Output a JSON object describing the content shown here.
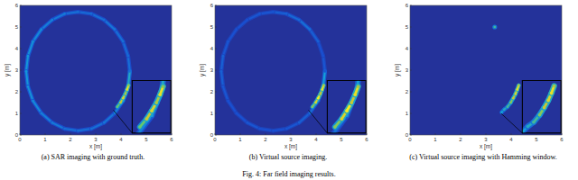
{
  "caption": "Fig. 4: Far field imaging results.",
  "chart_data": [
    {
      "type": "heatmap",
      "title": "(a)  SAR imaging with ground truth.",
      "xlabel": "x [m]",
      "ylabel": "y [m]",
      "xlim": [
        0,
        6
      ],
      "ylim": [
        0,
        6
      ],
      "xticks": [
        0,
        1,
        2,
        3,
        4,
        5,
        6
      ],
      "yticks": [
        0,
        1,
        2,
        3,
        4,
        5,
        6
      ],
      "zoom": {
        "xlim": [
          3.7,
          4.45
        ],
        "ylim": [
          1.15,
          2.45
        ]
      },
      "series": [
        {
          "x": [
            4.35,
            4.28,
            4.08,
            3.75,
            3.33,
            2.83,
            2.3,
            1.77,
            1.28,
            0.85,
            0.52,
            0.32,
            0.25,
            0.32,
            0.52,
            0.85,
            1.28,
            1.77,
            2.3,
            2.83,
            3.33,
            3.75,
            4.08,
            4.28,
            4.35
          ],
          "y": [
            2.95,
            3.66,
            4.33,
            4.89,
            5.33,
            5.61,
            5.7,
            5.61,
            5.33,
            4.89,
            4.33,
            3.66,
            2.95,
            2.24,
            1.58,
            1.01,
            0.57,
            0.29,
            0.2,
            0.29,
            0.57,
            1.01,
            1.58,
            2.24,
            2.95
          ],
          "values": [
            0.3,
            0.28,
            0.3,
            0.32,
            0.3,
            0.28,
            0.3,
            0.33,
            0.35,
            0.38,
            0.4,
            0.42,
            0.42,
            0.4,
            0.38,
            0.35,
            0.33,
            0.3,
            0.3,
            0.3,
            0.32,
            0.35,
            0.45,
            0.5,
            0.3
          ],
          "line_style": "solid"
        },
        {
          "x": [
            3.85,
            3.98,
            4.08,
            4.17,
            4.24,
            4.3
          ],
          "y": [
            1.3,
            1.5,
            1.7,
            1.9,
            2.1,
            2.3
          ],
          "values": [
            0.7,
            0.85,
            0.9,
            0.8,
            0.95,
            0.75
          ],
          "line_style": "solid"
        }
      ]
    },
    {
      "type": "heatmap",
      "title": "(b)  Virtual source imaging.",
      "xlabel": "x [m]",
      "ylabel": "y [m]",
      "xlim": [
        0,
        6
      ],
      "ylim": [
        0,
        6
      ],
      "xticks": [
        0,
        1,
        2,
        3,
        4,
        5,
        6
      ],
      "yticks": [
        0,
        1,
        2,
        3,
        4,
        5,
        6
      ],
      "zoom": {
        "xlim": [
          3.7,
          4.45
        ],
        "ylim": [
          1.15,
          2.45
        ]
      },
      "series": [
        {
          "x": [
            4.35,
            4.28,
            4.08,
            3.75,
            3.33,
            2.83,
            2.3,
            1.77,
            1.28,
            0.85,
            0.52,
            0.32,
            0.25,
            0.32,
            0.52,
            0.85,
            1.28,
            1.77,
            2.3,
            2.83,
            3.33,
            3.75,
            4.08,
            4.28,
            4.35
          ],
          "y": [
            2.95,
            3.66,
            4.33,
            4.89,
            5.33,
            5.61,
            5.7,
            5.61,
            5.33,
            4.89,
            4.33,
            3.66,
            2.95,
            2.24,
            1.58,
            1.01,
            0.57,
            0.29,
            0.2,
            0.29,
            0.57,
            1.01,
            1.58,
            2.24,
            2.95
          ],
          "values": [
            0.22,
            0.2,
            0.25,
            0.3,
            0.28,
            0.25,
            0.22,
            0.22,
            0.2,
            0.2,
            0.22,
            0.25,
            0.25,
            0.22,
            0.2,
            0.2,
            0.22,
            0.2,
            0.2,
            0.22,
            0.25,
            0.3,
            0.4,
            0.45,
            0.22
          ],
          "line_style": "solid"
        },
        {
          "x": [
            3.85,
            3.98,
            4.08,
            4.17,
            4.24,
            4.3
          ],
          "y": [
            1.3,
            1.5,
            1.7,
            1.9,
            2.1,
            2.3
          ],
          "values": [
            0.75,
            0.9,
            1.0,
            0.85,
            0.95,
            0.8
          ],
          "line_style": "solid"
        }
      ]
    },
    {
      "type": "heatmap",
      "title": "(c)  Virtual source imaging with Hamming window.",
      "xlabel": "x [m]",
      "ylabel": "y [m]",
      "xlim": [
        0,
        6
      ],
      "ylim": [
        0,
        6
      ],
      "xticks": [
        0,
        1,
        2,
        3,
        4,
        5,
        6
      ],
      "yticks": [
        0,
        1,
        2,
        3,
        4,
        5,
        6
      ],
      "zoom": {
        "xlim": [
          3.6,
          4.45
        ],
        "ylim": [
          1.0,
          2.45
        ]
      },
      "series": [
        {
          "x": [
            3.62,
            3.72,
            3.85,
            3.98,
            4.08,
            4.17,
            4.24,
            4.3
          ],
          "y": [
            1.05,
            1.18,
            1.3,
            1.5,
            1.7,
            1.9,
            2.1,
            2.3
          ],
          "values": [
            0.45,
            0.5,
            0.6,
            0.75,
            0.85,
            0.9,
            0.95,
            0.8
          ],
          "line_style": "solid"
        },
        {
          "x": [
            3.35
          ],
          "y": [
            5.0
          ],
          "values": [
            0.6
          ],
          "line_style": "solid"
        }
      ]
    }
  ]
}
